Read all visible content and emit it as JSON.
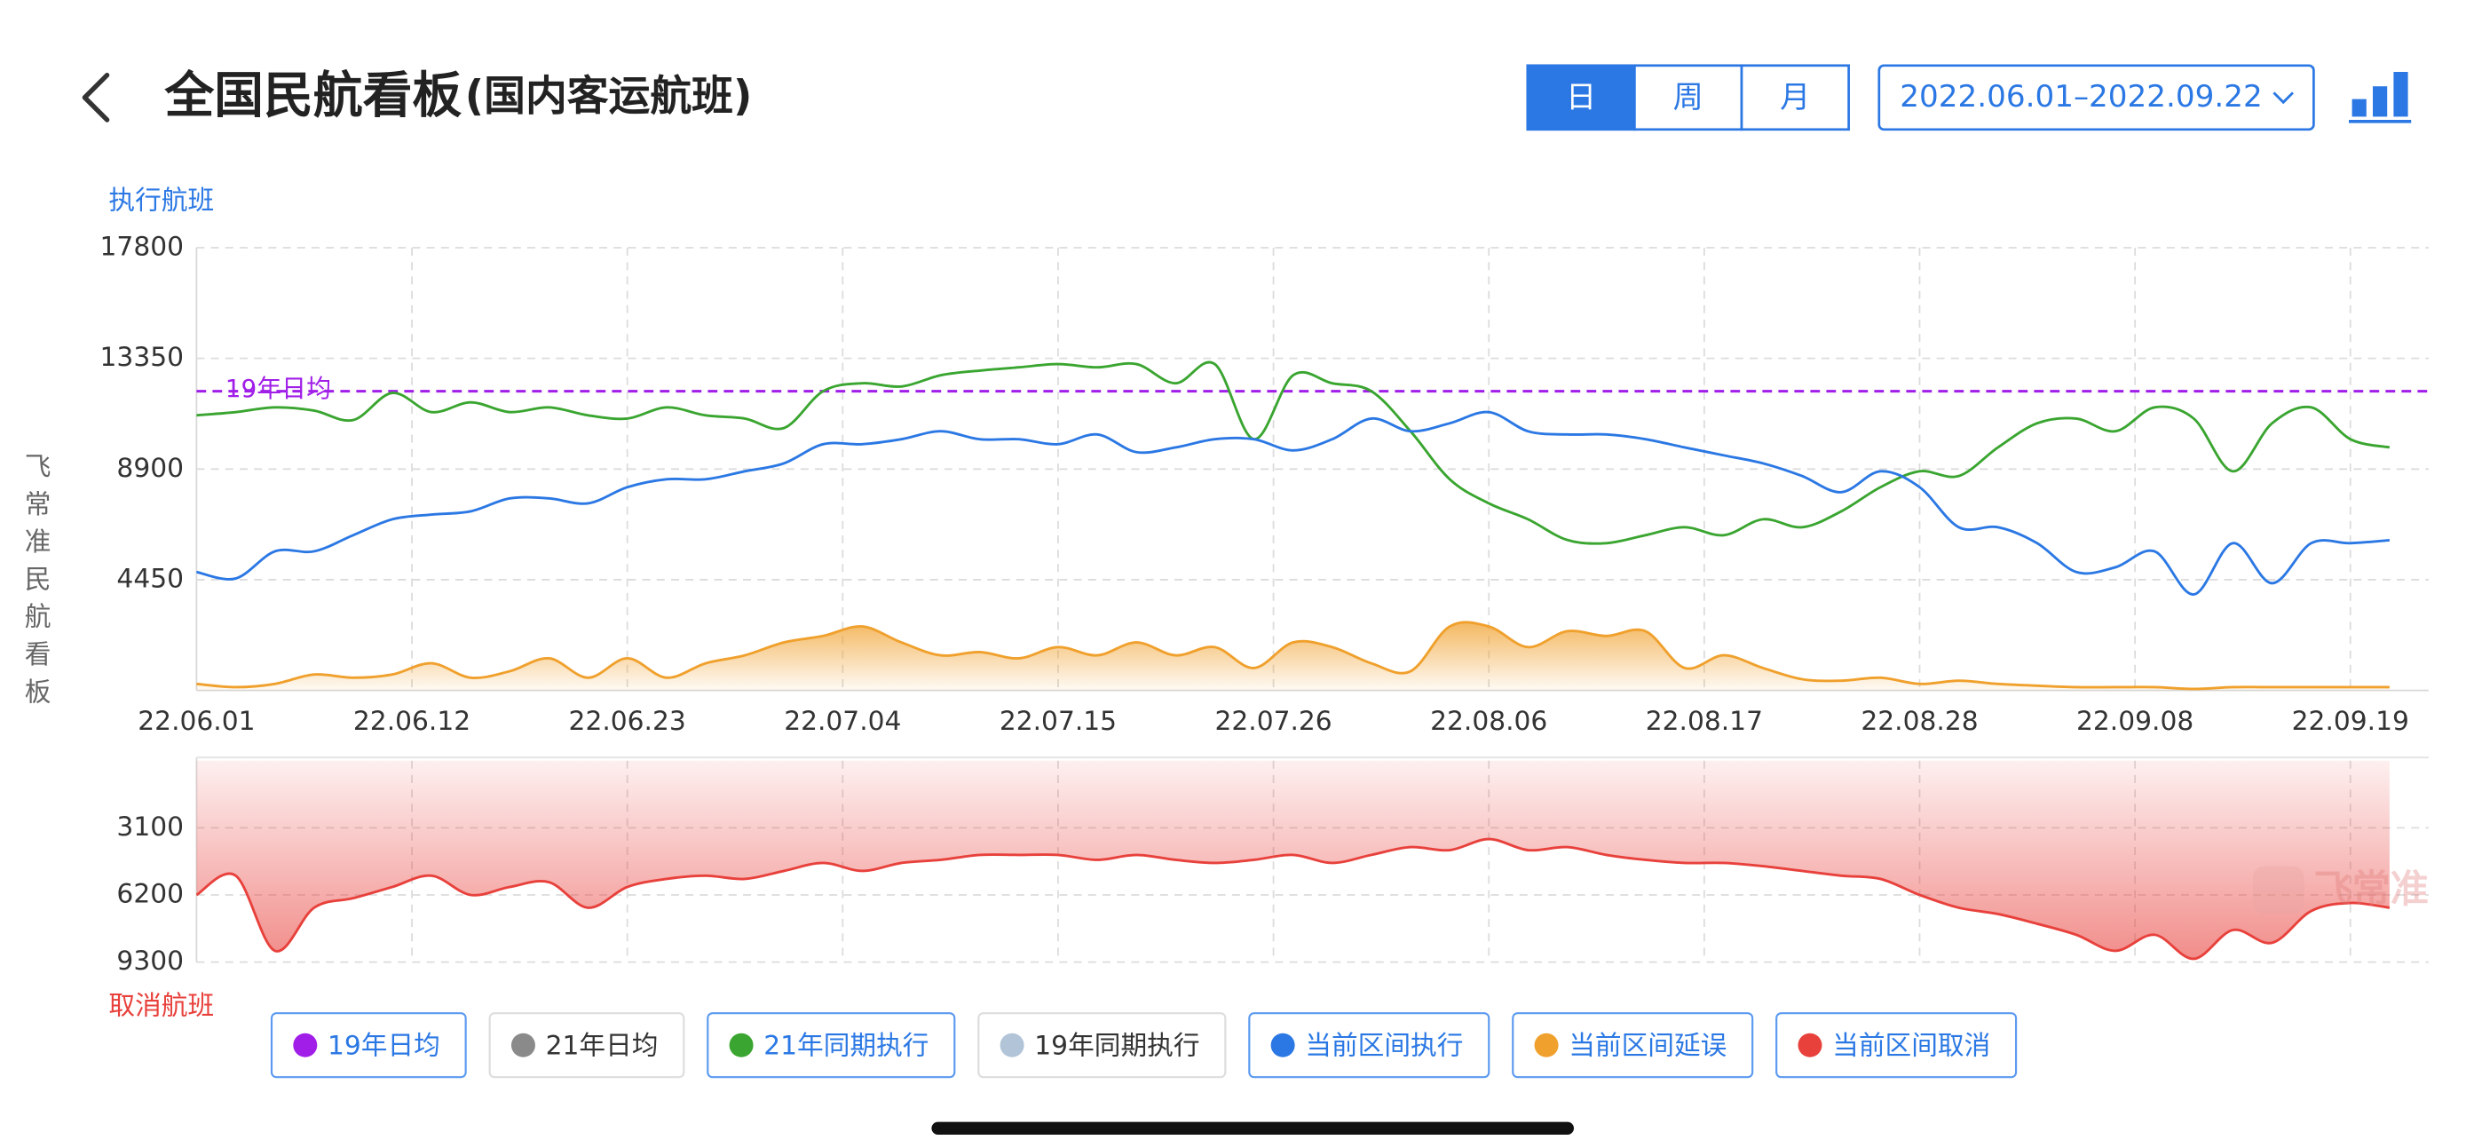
{
  "header": {
    "title": "全国民航看板",
    "subtitle": "(国内客运航班)"
  },
  "period_tabs": [
    {
      "label": "日",
      "active": true
    },
    {
      "label": "周",
      "active": false
    },
    {
      "label": "月",
      "active": false
    }
  ],
  "date_range": "2022.06.01–2022.09.22",
  "side_label": "飞常准民航看板",
  "watermark": "飞常准",
  "chart_data": [
    {
      "type": "line",
      "y_axis_label": "执行航班",
      "x": [
        0,
        2,
        4,
        6,
        8,
        10,
        12,
        14,
        16,
        18,
        20,
        22,
        24,
        26,
        28,
        30,
        32,
        34,
        36,
        38,
        40,
        42,
        44,
        46,
        48,
        50,
        52,
        54,
        56,
        58,
        60,
        62,
        64,
        66,
        68,
        70,
        72,
        74,
        76,
        78,
        80,
        82,
        84,
        86,
        88,
        90,
        92,
        94,
        96,
        98,
        100,
        102,
        104,
        106,
        108,
        110,
        112
      ],
      "xlim": [
        0,
        114
      ],
      "xticks": [
        {
          "value": 0,
          "label": "22.06.01"
        },
        {
          "value": 11,
          "label": "22.06.12"
        },
        {
          "value": 22,
          "label": "22.06.23"
        },
        {
          "value": 33,
          "label": "22.07.04"
        },
        {
          "value": 44,
          "label": "22.07.15"
        },
        {
          "value": 55,
          "label": "22.07.26"
        },
        {
          "value": 66,
          "label": "22.08.06"
        },
        {
          "value": 77,
          "label": "22.08.17"
        },
        {
          "value": 88,
          "label": "22.08.28"
        },
        {
          "value": 99,
          "label": "22.09.08"
        },
        {
          "value": 110,
          "label": "22.09.19"
        }
      ],
      "ylim": [
        0,
        17800
      ],
      "yticks": [
        4450,
        8900,
        13350,
        17800
      ],
      "grid": true,
      "series": [
        {
          "name": "19年日均",
          "color": "#a01ee8",
          "kind": "reference",
          "value": 12030,
          "visible": true
        },
        {
          "name": "21年日均",
          "color": "#8a8a8a",
          "visible": false
        },
        {
          "name": "21年同期执行",
          "color": "#3aa530",
          "visible": true,
          "values": [
            11060,
            11190,
            11380,
            11250,
            10870,
            11960,
            11190,
            11580,
            11190,
            11380,
            11060,
            10930,
            11380,
            11060,
            10930,
            10550,
            12030,
            12350,
            12220,
            12670,
            12860,
            12990,
            13120,
            12990,
            13120,
            12350,
            13120,
            10100,
            12670,
            12350,
            12030,
            10420,
            8490,
            7520,
            6880,
            6050,
            5920,
            6240,
            6560,
            6240,
            6880,
            6560,
            7200,
            8170,
            8810,
            8620,
            9770,
            10740,
            10930,
            10420,
            11380,
            10930,
            8810,
            10740,
            11380,
            10100,
            9770
          ]
        },
        {
          "name": "19年同期执行",
          "color": "#b2c4d8",
          "visible": false
        },
        {
          "name": "当前区间执行",
          "color": "#2b78e4",
          "visible": true,
          "values": [
            4760,
            4500,
            5590,
            5590,
            6240,
            6880,
            7070,
            7200,
            7720,
            7720,
            7520,
            8170,
            8490,
            8490,
            8810,
            9130,
            9900,
            9900,
            10100,
            10420,
            10100,
            10100,
            9900,
            10290,
            9580,
            9770,
            10100,
            10100,
            9650,
            10100,
            10930,
            10420,
            10740,
            11190,
            10420,
            10290,
            10290,
            10100,
            9770,
            9450,
            9130,
            8620,
            7970,
            8810,
            8170,
            6560,
            6560,
            5920,
            4760,
            4950,
            5590,
            3860,
            5920,
            4310,
            5920,
            5920,
            6040
          ]
        },
        {
          "name": "当前区间延误",
          "color": "#f0a02c",
          "visible": true,
          "fill": true,
          "values": [
            260,
            130,
            260,
            640,
            510,
            640,
            1090,
            510,
            770,
            1290,
            510,
            1290,
            510,
            1090,
            1410,
            1930,
            2190,
            2570,
            1930,
            1410,
            1540,
            1290,
            1740,
            1410,
            1930,
            1410,
            1740,
            900,
            1930,
            1740,
            1090,
            770,
            2570,
            2570,
            1740,
            2380,
            2190,
            2380,
            900,
            1410,
            900,
            450,
            390,
            510,
            260,
            390,
            260,
            190,
            130,
            130,
            130,
            60,
            130,
            130,
            130,
            130,
            130
          ]
        }
      ]
    },
    {
      "type": "area",
      "y_axis_label": "取消航班",
      "inverted": true,
      "x": [
        0,
        2,
        4,
        6,
        8,
        10,
        12,
        14,
        16,
        18,
        20,
        22,
        24,
        26,
        28,
        30,
        32,
        34,
        36,
        38,
        40,
        42,
        44,
        46,
        48,
        50,
        52,
        54,
        56,
        58,
        60,
        62,
        64,
        66,
        68,
        70,
        72,
        74,
        76,
        78,
        80,
        82,
        84,
        86,
        88,
        90,
        92,
        94,
        96,
        98,
        100,
        102,
        104,
        106,
        108,
        110,
        112
      ],
      "xlim": [
        0,
        114
      ],
      "ylim": [
        0,
        9300
      ],
      "yticks": [
        3100,
        6200,
        9300
      ],
      "grid": true,
      "series": [
        {
          "name": "当前区间取消",
          "color": "#e8413c",
          "visible": true,
          "values": [
            6200,
            5310,
            8780,
            6790,
            6350,
            5830,
            5310,
            6200,
            5830,
            5610,
            6790,
            5830,
            5460,
            5310,
            5460,
            5090,
            4720,
            5090,
            4720,
            4580,
            4350,
            4350,
            4350,
            4580,
            4350,
            4580,
            4720,
            4580,
            4350,
            4720,
            4350,
            3990,
            4130,
            3620,
            4130,
            3990,
            4350,
            4580,
            4720,
            4720,
            4870,
            5090,
            5310,
            5460,
            6200,
            6790,
            7080,
            7530,
            8040,
            8780,
            8040,
            9150,
            7820,
            8410,
            6940,
            6570,
            6790
          ]
        }
      ]
    }
  ]
}
